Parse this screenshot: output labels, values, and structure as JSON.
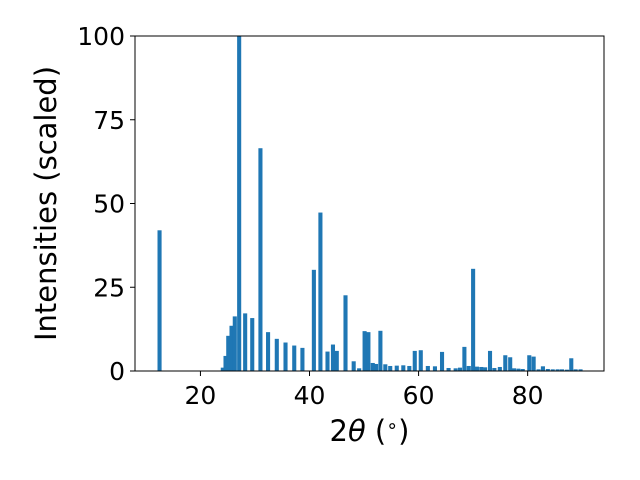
{
  "chart_data": {
    "type": "bar",
    "title": "",
    "xlabel": "2θ (∘)",
    "xlabel_parts": {
      "pre": "2",
      "symbol": "θ",
      "post": " (",
      "degree": "∘",
      "close": ")"
    },
    "ylabel": "Intensities (scaled)",
    "xlim": [
      8.0,
      94.0
    ],
    "ylim": [
      0,
      100
    ],
    "xticks": [
      20,
      40,
      60,
      80
    ],
    "yticks": [
      0,
      25,
      50,
      75,
      100
    ],
    "grid": false,
    "legend": "none",
    "bar_width": 0.75,
    "color": "#1f77b4",
    "x": [
      12.5,
      24.1,
      24.6,
      25.1,
      25.7,
      26.3,
      27.1,
      28.2,
      29.5,
      31.0,
      32.4,
      34.0,
      35.6,
      37.2,
      38.7,
      40.8,
      42.0,
      43.3,
      44.3,
      45.0,
      46.6,
      48.1,
      49.1,
      50.1,
      50.8,
      51.6,
      52.2,
      53.0,
      53.9,
      54.8,
      56.0,
      57.2,
      58.3,
      59.3,
      60.4,
      61.7,
      63.0,
      64.3,
      65.5,
      66.8,
      67.6,
      68.4,
      69.2,
      70.0,
      70.7,
      71.5,
      72.2,
      73.1,
      73.9,
      74.9,
      75.9,
      76.8,
      77.5,
      78.3,
      79.1,
      80.3,
      81.1,
      82.0,
      82.8,
      83.7,
      84.6,
      85.5,
      86.3,
      87.2,
      88.0,
      88.8,
      89.7
    ],
    "values": [
      42.0,
      1.0,
      4.5,
      10.5,
      13.5,
      16.3,
      100.0,
      17.2,
      15.8,
      66.5,
      11.6,
      9.6,
      8.5,
      7.6,
      6.9,
      30.2,
      47.3,
      5.8,
      7.9,
      6.0,
      22.6,
      2.9,
      0.8,
      11.9,
      11.6,
      2.4,
      2.1,
      12.0,
      2.0,
      1.5,
      1.6,
      1.7,
      1.5,
      6.0,
      6.2,
      1.5,
      1.4,
      5.7,
      0.9,
      0.8,
      1.0,
      7.2,
      1.5,
      30.5,
      1.3,
      1.2,
      1.1,
      6.0,
      0.9,
      1.2,
      4.7,
      4.1,
      0.8,
      0.7,
      0.6,
      4.7,
      4.3,
      0.5,
      1.4,
      0.6,
      0.5,
      0.5,
      0.5,
      0.4,
      3.8,
      0.5,
      0.5
    ]
  }
}
